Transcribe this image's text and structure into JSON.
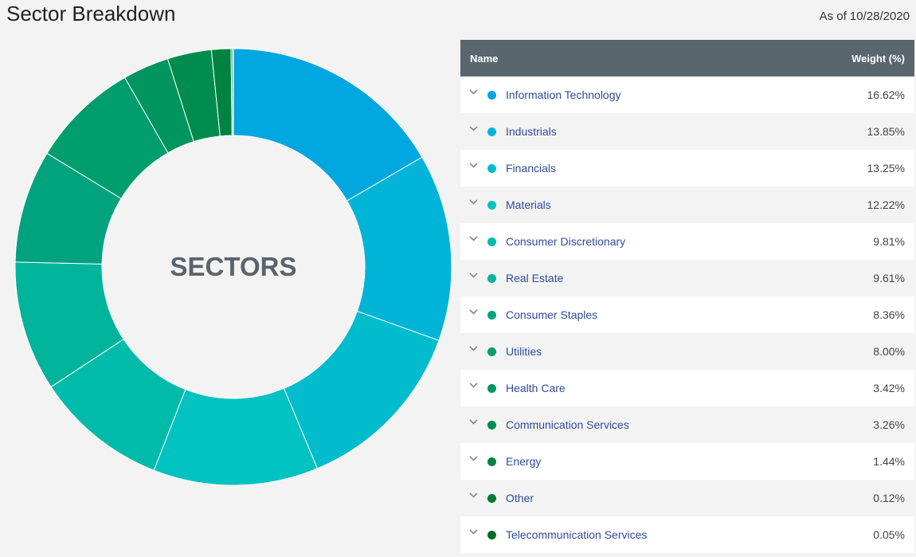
{
  "header": {
    "title": "Sector Breakdown",
    "as_of": "As of 10/28/2020"
  },
  "donut": {
    "center_label": "SECTORS"
  },
  "table": {
    "col_name": "Name",
    "col_weight": "Weight (%)"
  },
  "colors": [
    "#00a6e0",
    "#00b4d7",
    "#00bccd",
    "#00c2c0",
    "#00bbaa",
    "#00b39b",
    "#00a37d",
    "#009d6d",
    "#00945f",
    "#008c4e",
    "#008340",
    "#007a32",
    "#006f28"
  ],
  "chart_data": {
    "type": "pie",
    "title": "Sector Breakdown",
    "categories": [
      "Information Technology",
      "Industrials",
      "Financials",
      "Materials",
      "Consumer Discretionary",
      "Real Estate",
      "Consumer Staples",
      "Utilities",
      "Health Care",
      "Communication Services",
      "Energy",
      "Other",
      "Telecommunication Services"
    ],
    "values": [
      16.62,
      13.85,
      13.25,
      12.22,
      9.81,
      9.61,
      8.36,
      8.0,
      3.42,
      3.26,
      1.44,
      0.12,
      0.05
    ],
    "value_labels": [
      "16.62%",
      "13.85%",
      "13.25%",
      "12.22%",
      "9.81%",
      "9.61%",
      "8.36%",
      "8.00%",
      "3.42%",
      "3.26%",
      "1.44%",
      "0.12%",
      "0.05%"
    ]
  }
}
